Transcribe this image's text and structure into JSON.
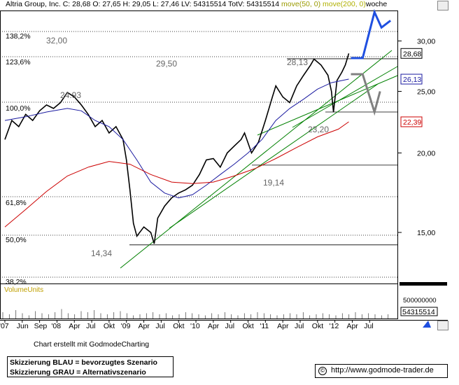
{
  "header": {
    "symbol": "Altria Group, Inc.",
    "quote": "C: 28,68  O: 27,65  H: 29,05  L: 27,46  LV: 54315514  TotV: 54315514",
    "ma50": "move(50, 0)",
    "ma200": "move(200, 0)",
    "interval": "woche"
  },
  "colors": {
    "price": "#000000",
    "ma50": "#1a1aa0",
    "ma200": "#cc0000",
    "trend": "#008000",
    "scenario_blue": "#1f4fe0",
    "scenario_grey": "#808080",
    "fib": "#000000"
  },
  "footer": {
    "credit": "Chart erstellt mit GodmodeCharting",
    "legend_blue": "Skizzierung BLAU = bevorzugtes Szenario",
    "legend_grey": "Skizzierung GRAU = Alternativszenario",
    "url": "http://www.godmode-trader.de"
  },
  "chart_data": {
    "type": "line",
    "title": "Altria Group, Inc.",
    "x_ticks": [
      "'07",
      "Jun",
      "Sep",
      "'08",
      "Apr",
      "Jul",
      "Okt",
      "'09",
      "Apr",
      "Jul",
      "Okt",
      "'10",
      "Apr",
      "Jul",
      "Okt",
      "'11",
      "Apr",
      "Jul",
      "Okt",
      "'12",
      "Apr",
      "Jul"
    ],
    "y_ticks": [
      "30,00",
      "25,00",
      "20,00",
      "15,00"
    ],
    "ylim": [
      12.5,
      33.5
    ],
    "y_scale": "log",
    "series": [
      {
        "name": "Altria Group, Inc.",
        "values": [
          [
            2007.0,
            21.0
          ],
          [
            2007.1,
            22.5
          ],
          [
            2007.2,
            22.0
          ],
          [
            2007.3,
            23.0
          ],
          [
            2007.4,
            22.5
          ],
          [
            2007.5,
            23.3
          ],
          [
            2007.6,
            23.8
          ],
          [
            2007.7,
            23.5
          ],
          [
            2007.8,
            24.0
          ],
          [
            2007.9,
            24.9
          ],
          [
            2008.0,
            24.5
          ],
          [
            2008.1,
            23.8
          ],
          [
            2008.2,
            23.0
          ],
          [
            2008.3,
            22.0
          ],
          [
            2008.4,
            22.5
          ],
          [
            2008.5,
            21.5
          ],
          [
            2008.6,
            22.0
          ],
          [
            2008.7,
            21.0
          ],
          [
            2008.75,
            19.5
          ],
          [
            2008.8,
            17.5
          ],
          [
            2008.85,
            15.5
          ],
          [
            2008.9,
            14.8
          ],
          [
            2009.0,
            15.3
          ],
          [
            2009.1,
            15.0
          ],
          [
            2009.15,
            14.4
          ],
          [
            2009.2,
            15.8
          ],
          [
            2009.3,
            16.5
          ],
          [
            2009.4,
            17.0
          ],
          [
            2009.5,
            17.3
          ],
          [
            2009.6,
            17.5
          ],
          [
            2009.7,
            17.8
          ],
          [
            2009.8,
            18.5
          ],
          [
            2009.9,
            19.5
          ],
          [
            2010.0,
            19.6
          ],
          [
            2010.1,
            19.0
          ],
          [
            2010.2,
            20.0
          ],
          [
            2010.3,
            20.5
          ],
          [
            2010.4,
            21.0
          ],
          [
            2010.45,
            21.5
          ],
          [
            2010.55,
            20.0
          ],
          [
            2010.65,
            20.8
          ],
          [
            2010.75,
            22.5
          ],
          [
            2010.85,
            24.5
          ],
          [
            2010.9,
            25.5
          ],
          [
            2011.0,
            24.5
          ],
          [
            2011.1,
            24.0
          ],
          [
            2011.2,
            25.5
          ],
          [
            2011.3,
            26.5
          ],
          [
            2011.4,
            27.5
          ],
          [
            2011.45,
            28.1
          ],
          [
            2011.55,
            27.5
          ],
          [
            2011.6,
            27.0
          ],
          [
            2011.65,
            26.5
          ],
          [
            2011.7,
            25.0
          ],
          [
            2011.73,
            23.2
          ],
          [
            2011.78,
            26.0
          ],
          [
            2011.85,
            26.8
          ],
          [
            2011.9,
            27.5
          ],
          [
            2011.95,
            28.68
          ]
        ]
      },
      {
        "name": "move(50, 0)",
        "values": [
          [
            2007.0,
            22.5
          ],
          [
            2007.3,
            22.8
          ],
          [
            2007.6,
            23.2
          ],
          [
            2007.9,
            23.5
          ],
          [
            2008.1,
            23.3
          ],
          [
            2008.3,
            22.5
          ],
          [
            2008.5,
            22.0
          ],
          [
            2008.7,
            21.0
          ],
          [
            2008.9,
            19.5
          ],
          [
            2009.1,
            18.0
          ],
          [
            2009.3,
            17.3
          ],
          [
            2009.5,
            17.0
          ],
          [
            2009.7,
            17.2
          ],
          [
            2009.9,
            17.8
          ],
          [
            2010.1,
            18.5
          ],
          [
            2010.3,
            19.2
          ],
          [
            2010.5,
            20.0
          ],
          [
            2010.7,
            21.0
          ],
          [
            2010.9,
            22.5
          ],
          [
            2011.1,
            23.5
          ],
          [
            2011.3,
            24.3
          ],
          [
            2011.5,
            25.2
          ],
          [
            2011.7,
            25.8
          ],
          [
            2011.95,
            26.13
          ]
        ]
      },
      {
        "name": "move(200, 0)",
        "values": [
          [
            2007.0,
            15.3
          ],
          [
            2007.3,
            16.3
          ],
          [
            2007.6,
            17.4
          ],
          [
            2007.9,
            18.4
          ],
          [
            2008.2,
            19.0
          ],
          [
            2008.5,
            19.4
          ],
          [
            2008.8,
            19.2
          ],
          [
            2009.1,
            18.5
          ],
          [
            2009.4,
            18.0
          ],
          [
            2009.7,
            17.9
          ],
          [
            2010.0,
            18.0
          ],
          [
            2010.3,
            18.4
          ],
          [
            2010.6,
            18.9
          ],
          [
            2010.9,
            19.6
          ],
          [
            2011.2,
            20.4
          ],
          [
            2011.5,
            21.2
          ],
          [
            2011.8,
            21.8
          ],
          [
            2011.95,
            22.39
          ]
        ]
      }
    ],
    "value_labels": {
      "last_price": "28,68",
      "ma50_last": "26,13",
      "ma200_last": "22,39"
    },
    "annotations": [
      "32,00",
      "29,50",
      "28,13",
      "24.93",
      "23,20",
      "19,14",
      "14,34"
    ],
    "fib_levels": [
      "138,2%",
      "123,6%",
      "100,0%",
      "61,8%",
      "50,0%",
      "38,2%"
    ],
    "volume": {
      "label": "VolumeUnits",
      "ticks": [
        "500000000"
      ],
      "last": "54315514"
    },
    "grid": false
  }
}
